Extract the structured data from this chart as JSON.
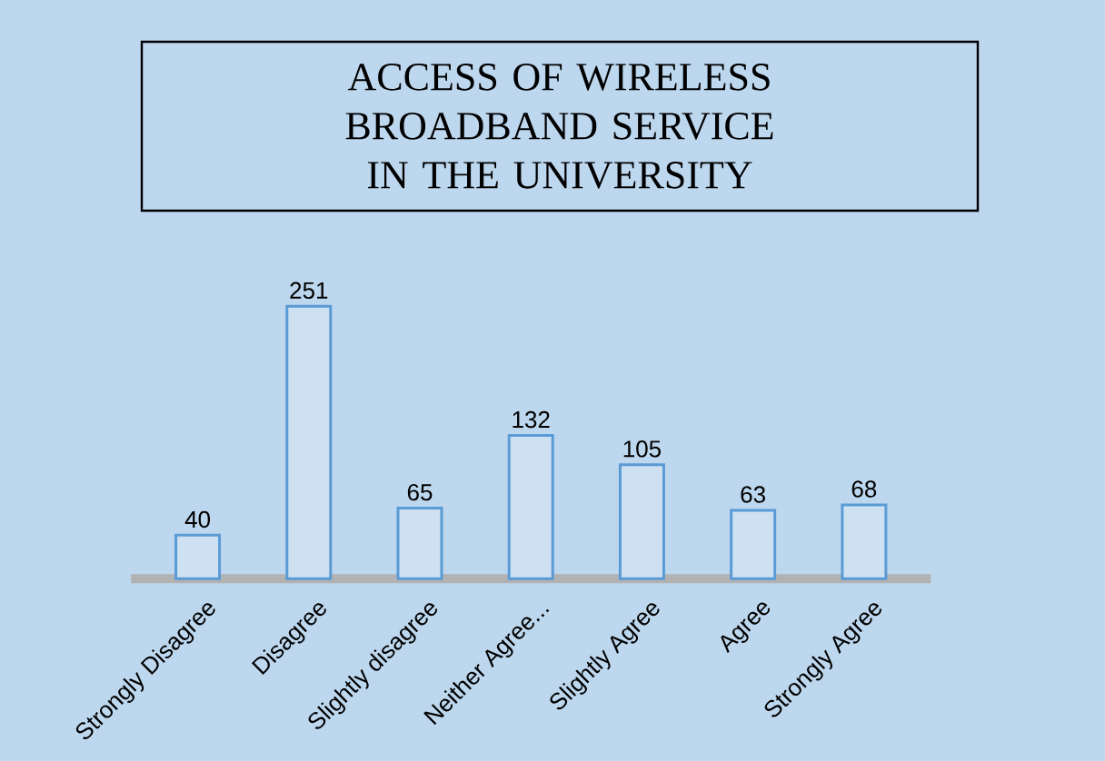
{
  "chart_data": {
    "type": "bar",
    "title": "ACCESS OF WIRELESS BROADBAND SERVICE IN THE UNIVERSITY",
    "categories": [
      "Strongly Disagree",
      "Disagree",
      "Slightly disagree",
      "Neither Agree...",
      "Slightly Agree",
      "Agree",
      "Strongly Agree"
    ],
    "values": [
      40,
      251,
      65,
      132,
      105,
      63,
      68
    ],
    "color": "#5b9bd5",
    "data_labels": true
  }
}
